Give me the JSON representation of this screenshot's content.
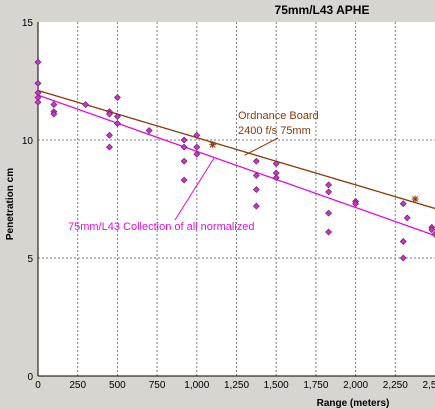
{
  "chart_data": {
    "type": "scatter",
    "title": "75mm/L43 APHE",
    "xlabel": "Range (meters)",
    "ylabel": "Penetration cm",
    "xlim": [
      0,
      2500
    ],
    "ylim": [
      0,
      15
    ],
    "x_ticks": [
      "0",
      "250",
      "500",
      "750",
      "1,000",
      "1,250",
      "1,500",
      "1,750",
      "2,000",
      "2,250",
      "2,500"
    ],
    "y_ticks": [
      "0",
      "5",
      "10",
      "15"
    ],
    "grid": true,
    "colors": {
      "ordnance": "#8b3a0a",
      "collection": "#e010e0",
      "points": "#cc33cc",
      "background": "#ffffff",
      "grid": "#808080"
    },
    "series": [
      {
        "type": "scatter",
        "points": [
          [
            0,
            13.3
          ],
          [
            0,
            12.4
          ],
          [
            0,
            12.0
          ],
          [
            0,
            11.8
          ],
          [
            0,
            11.6
          ],
          [
            100,
            11.5
          ],
          [
            100,
            11.2
          ],
          [
            100,
            11.1
          ],
          [
            300,
            11.5
          ],
          [
            450,
            11.2
          ],
          [
            450,
            11.1
          ],
          [
            450,
            10.2
          ],
          [
            450,
            9.7
          ],
          [
            500,
            11.8
          ],
          [
            500,
            11.0
          ],
          [
            500,
            10.7
          ],
          [
            700,
            10.4
          ],
          [
            920,
            10.0
          ],
          [
            920,
            9.7
          ],
          [
            920,
            9.1
          ],
          [
            920,
            8.3
          ],
          [
            1000,
            10.2
          ],
          [
            1000,
            9.7
          ],
          [
            1000,
            9.4
          ],
          [
            1375,
            9.1
          ],
          [
            1375,
            8.5
          ],
          [
            1375,
            7.9
          ],
          [
            1375,
            7.2
          ],
          [
            1500,
            9.0
          ],
          [
            1500,
            8.6
          ],
          [
            1500,
            8.4
          ],
          [
            1830,
            8.1
          ],
          [
            1830,
            7.8
          ],
          [
            1830,
            6.9
          ],
          [
            1830,
            6.1
          ],
          [
            2000,
            7.4
          ],
          [
            2000,
            7.3
          ],
          [
            2300,
            7.3
          ],
          [
            2300,
            5.7
          ],
          [
            2300,
            5.0
          ],
          [
            2325,
            6.7
          ],
          [
            2480,
            6.3
          ],
          [
            2480,
            6.2
          ],
          [
            2500,
            6.0
          ]
        ]
      },
      {
        "name": "Ordnance Board 2400 f/s 75mm",
        "type": "line",
        "x": [
          0,
          2500
        ],
        "y": [
          12.1,
          7.1
        ],
        "markers": [
          [
            1100,
            9.8
          ],
          [
            2375,
            7.5
          ]
        ]
      },
      {
        "name": "75mm/L43 Collection of all normalized",
        "type": "line",
        "x": [
          0,
          2500
        ],
        "y": [
          11.9,
          5.95
        ]
      }
    ],
    "annotations": [
      {
        "lines": [
          "Ordnance Board",
          "2400 f/s 75mm"
        ],
        "pointer_to": [
          1300,
          9.35
        ]
      },
      {
        "lines": [
          "75mm/L43 Collection of all normalized"
        ],
        "pointer_to": [
          1110,
          9.25
        ]
      }
    ]
  }
}
